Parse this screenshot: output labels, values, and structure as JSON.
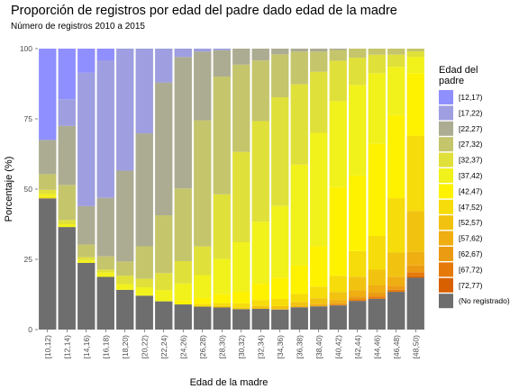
{
  "chart_data": {
    "type": "bar",
    "stacked": true,
    "title": "Proporción de registros por edad del padre dado edad de la madre",
    "subtitle": "Número de registros 2010 a 2015",
    "xlabel": "Edad de la madre",
    "ylabel": "Porcentaje (%)",
    "ylim": [
      0,
      100
    ],
    "yticks": [
      0,
      25,
      50,
      75,
      100
    ],
    "legend": {
      "title_lines": [
        "Edad del",
        "padre"
      ],
      "position": "right"
    },
    "categories": [
      "[10,12)",
      "[12,14)",
      "[14,16)",
      "[16,18)",
      "[18,20)",
      "[20,22)",
      "[22,24)",
      "[24,26)",
      "[26,28)",
      "[28,30)",
      "[30,32)",
      "[32,34)",
      "[34,36)",
      "[36,38)",
      "[38,40)",
      "[40,42)",
      "[42,44)",
      "[44,46)",
      "[46,48)",
      "[48,50)"
    ],
    "series": [
      {
        "name": "(No registrado)",
        "color": "#6e6e6e",
        "values": [
          46,
          36.5,
          23.5,
          18,
          14,
          12,
          10,
          9,
          8,
          7.5,
          7,
          7,
          7,
          7.5,
          8,
          9,
          9.5,
          10,
          12.5,
          19
        ]
      },
      {
        "name": "[72,77)",
        "color": "#d86000",
        "values": [
          0,
          0,
          0,
          0,
          0,
          0,
          0,
          0,
          0,
          0,
          0,
          0,
          0,
          0,
          0,
          0,
          0,
          0,
          0,
          0.5
        ]
      },
      {
        "name": "[67,72)",
        "color": "#e57a0a",
        "values": [
          0,
          0,
          0,
          0,
          0,
          0,
          0,
          0,
          0,
          0,
          0,
          0,
          0,
          0,
          0,
          0.3,
          0.5,
          0.8,
          0.7,
          1.5
        ]
      },
      {
        "name": "[62,67)",
        "color": "#eb9b12",
        "values": [
          0,
          0,
          0,
          0,
          0,
          0,
          0,
          0,
          0,
          0,
          0,
          0,
          0,
          0,
          0.2,
          0.5,
          1,
          1.2,
          1.3,
          2.5
        ]
      },
      {
        "name": "[57,62)",
        "color": "#efae12",
        "values": [
          0,
          0,
          0,
          0,
          0,
          0,
          0,
          0,
          0,
          0,
          0,
          0,
          0.2,
          0.4,
          0.6,
          1.2,
          2,
          2.5,
          3,
          5
        ]
      },
      {
        "name": "[52,57)",
        "color": "#f1c310",
        "values": [
          0,
          0,
          0,
          0,
          0,
          0,
          0,
          0,
          0,
          0.5,
          0.5,
          1,
          1,
          1.4,
          2,
          3,
          4.5,
          5,
          8,
          15
        ]
      },
      {
        "name": "[47,52)",
        "color": "#f6dc0a",
        "values": [
          0.5,
          0,
          0,
          0,
          0,
          0,
          0,
          0,
          1,
          1,
          1.5,
          2,
          2.5,
          2.7,
          4,
          6,
          8.5,
          11,
          18,
          27.5
        ]
      },
      {
        "name": "[42,47)",
        "color": "#fff200",
        "values": [
          0,
          0,
          0,
          0,
          0,
          0,
          0,
          1.5,
          2,
          3,
          4,
          5.5,
          7.5,
          9.5,
          14,
          33,
          25,
          30,
          27.5,
          23
        ]
      },
      {
        "name": "[37,42)",
        "color": "#f1f11c",
        "values": [
          1,
          1,
          1,
          1.5,
          2,
          3,
          4,
          6,
          8,
          12,
          17,
          21,
          25,
          34,
          39,
          32,
          30,
          23,
          16,
          6
        ]
      },
      {
        "name": "[32,37)",
        "color": "#e0e03a",
        "values": [
          1.5,
          1.5,
          1,
          1,
          3,
          3,
          6,
          8,
          10,
          22,
          31,
          34,
          38,
          27,
          21,
          15,
          9,
          6,
          4,
          2
        ]
      },
      {
        "name": "[27,32)",
        "color": "#c5c56c",
        "values": [
          5.5,
          12.5,
          4.5,
          4.5,
          5,
          11.5,
          20.5,
          26,
          44,
          40,
          30,
          20.5,
          15,
          11,
          7,
          4,
          3,
          2,
          2,
          1
        ]
      },
      {
        "name": "[22,27)",
        "color": "#acac93",
        "values": [
          12,
          21,
          13.5,
          20,
          32,
          40,
          47,
          47,
          24,
          9,
          5.5,
          4,
          2,
          1,
          1,
          0.5,
          0,
          0,
          0,
          0
        ]
      },
      {
        "name": "[17,22)",
        "color": "#9e9ee0",
        "values": [
          0,
          9.5,
          47,
          47,
          43,
          30,
          12,
          3,
          1,
          0.5,
          0,
          0,
          0,
          0,
          0,
          0,
          0,
          0,
          0,
          0
        ]
      },
      {
        "name": "[12,17)",
        "color": "#8f8fff",
        "values": [
          32,
          18,
          8.5,
          4,
          0,
          0,
          0,
          0,
          0,
          0,
          0,
          0,
          0,
          0,
          0,
          0,
          0,
          0,
          0,
          0
        ]
      }
    ],
    "stack_order": [
      "(No registrado)",
      "[72,77)",
      "[67,72)",
      "[62,67)",
      "[57,62)",
      "[52,57)",
      "[47,52)",
      "[42,47)",
      "[37,42)",
      "[32,37)",
      "[27,32)",
      "[22,27)",
      "[17,22)",
      "[12,17)"
    ],
    "legend_order": [
      "[12,17)",
      "[17,22)",
      "[22,27)",
      "[27,32)",
      "[32,37)",
      "[37,42)",
      "[42,47)",
      "[47,52)",
      "[52,57)",
      "[57,62)",
      "[62,67)",
      "[67,72)",
      "[72,77)",
      "(No registrado)"
    ]
  }
}
